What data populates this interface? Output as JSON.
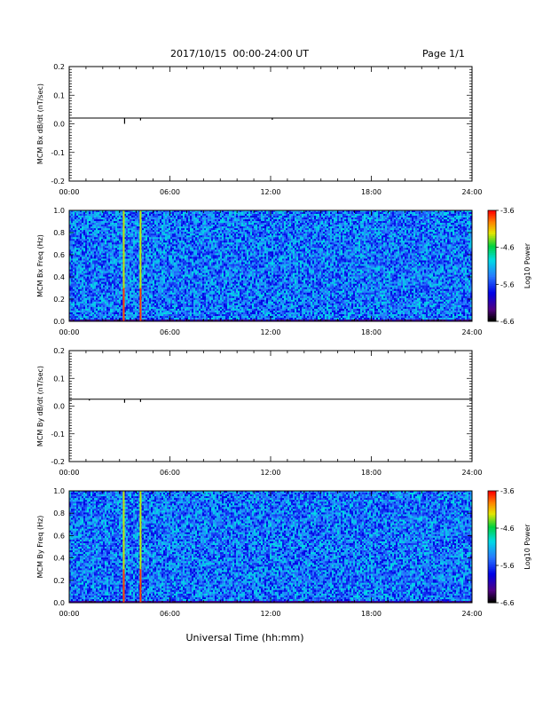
{
  "header": {
    "title": "2017/10/15  00:00-24:00 UT",
    "page": "Page 1/1"
  },
  "xlabel": "Universal Time (hh:mm)",
  "chart_data": [
    {
      "type": "line",
      "ylabel": "MCM Bx dB/dt (nT/sec)",
      "xlim": [
        0,
        24
      ],
      "ylim": [
        -0.2,
        0.2
      ],
      "xticks": [
        "00:00",
        "06:00",
        "12:00",
        "18:00",
        "24:00"
      ],
      "yticks": [
        "0.2",
        "0.1",
        "0.0",
        "-0.1",
        "-0.2"
      ],
      "baseline": 0.02,
      "spikes": [
        {
          "x": 3.3,
          "y": 0.0
        },
        {
          "x": 4.25,
          "y": 0.012
        },
        {
          "x": 12.1,
          "y": 0.014
        }
      ]
    },
    {
      "type": "heatmap",
      "ylabel": "MCM Bx Freq (Hz)",
      "xlim": [
        0,
        24
      ],
      "ylim": [
        0,
        1
      ],
      "xticks": [
        "00:00",
        "06:00",
        "12:00",
        "18:00",
        "24:00"
      ],
      "yticks": [
        "1.0",
        "0.8",
        "0.6",
        "0.4",
        "0.2",
        "0.0"
      ],
      "colorbar": {
        "label": "Log10 Power",
        "ticks": [
          "-3.6",
          "-4.6",
          "-5.6",
          "-6.6"
        ],
        "range": [
          -6.6,
          -3.6
        ]
      },
      "dominant_level": -5.4,
      "bright_lines_hours": [
        3.25,
        4.25
      ]
    },
    {
      "type": "line",
      "ylabel": "MCM By dB/dt (nT/sec)",
      "xlim": [
        0,
        24
      ],
      "ylim": [
        -0.2,
        0.2
      ],
      "xticks": [
        "00:00",
        "06:00",
        "12:00",
        "18:00",
        "24:00"
      ],
      "yticks": [
        "0.2",
        "0.1",
        "0.0",
        "-0.1",
        "-0.2"
      ],
      "baseline": 0.025,
      "spikes": [
        {
          "x": 1.2,
          "y": 0.02
        },
        {
          "x": 3.3,
          "y": 0.012
        },
        {
          "x": 4.25,
          "y": 0.015
        }
      ]
    },
    {
      "type": "heatmap",
      "ylabel": "MCM By Freq (Hz)",
      "xlim": [
        0,
        24
      ],
      "ylim": [
        0,
        1
      ],
      "xticks": [
        "00:00",
        "06:00",
        "12:00",
        "18:00",
        "24:00"
      ],
      "yticks": [
        "1.0",
        "0.8",
        "0.6",
        "0.4",
        "0.2",
        "0.0"
      ],
      "colorbar": {
        "label": "Log10 Power",
        "ticks": [
          "-3.6",
          "-4.6",
          "-5.6",
          "-6.6"
        ],
        "range": [
          -6.6,
          -3.6
        ]
      },
      "dominant_level": -5.4,
      "bright_lines_hours": [
        3.25,
        4.25
      ]
    }
  ]
}
